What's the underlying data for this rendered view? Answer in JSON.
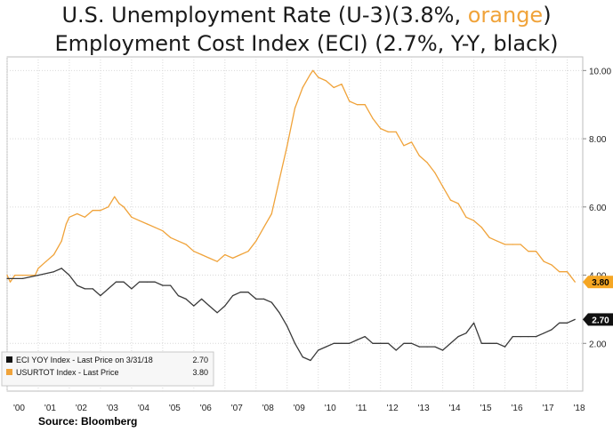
{
  "title": {
    "line1_prefix": "U.S. Unemployment Rate (U-3)(3.8%, ",
    "line1_highlight": "orange",
    "line1_suffix": ")",
    "line2": "Employment Cost Index (ECI) (2.7%, Y-Y, black)"
  },
  "source": "Source: Bloomberg",
  "colors": {
    "unemployment": "#f0a33a",
    "eci": "#3a3a3a",
    "label_bg_unemp": "#f5a623",
    "label_bg_eci": "#111111",
    "grid": "#d9d9d9"
  },
  "legend": [
    {
      "text": "ECI YOY Index - Last Price on 3/31/18",
      "value": "2.70",
      "swatch": "#111111"
    },
    {
      "text": "USURTOT Index - Last Price",
      "value": "3.80",
      "swatch": "#f0a33a"
    }
  ],
  "last_labels": {
    "eci": "2.70",
    "unemployment": "3.80"
  },
  "chart_data": {
    "type": "line",
    "title": "",
    "xlabel": "",
    "ylabel": "",
    "x_ticks": [
      "'00",
      "'01",
      "'02",
      "'03",
      "'04",
      "'05",
      "'06",
      "'07",
      "'08",
      "'09",
      "'10",
      "'11",
      "'12",
      "'13",
      "'14",
      "'15",
      "'16",
      "'17",
      "'18"
    ],
    "y_ticks": [
      "2.00",
      "4.00",
      "6.00",
      "8.00",
      "10.00"
    ],
    "ylim": [
      0.6,
      10.4
    ],
    "xlim": [
      2000.0,
      2018.5
    ],
    "grid": true,
    "legend_position": "bottom-left",
    "series": [
      {
        "key": "unemployment",
        "x": [
          2000.0,
          2000.1,
          2000.25,
          2000.5,
          2000.9,
          2001.0,
          2001.25,
          2001.5,
          2001.75,
          2001.9,
          2002.0,
          2002.25,
          2002.5,
          2002.75,
          2003.0,
          2003.25,
          2003.45,
          2003.6,
          2003.75,
          2004.0,
          2004.25,
          2004.5,
          2004.75,
          2005.0,
          2005.25,
          2005.5,
          2005.75,
          2006.0,
          2006.25,
          2006.5,
          2006.75,
          2007.0,
          2007.25,
          2007.5,
          2007.75,
          2008.0,
          2008.25,
          2008.5,
          2008.75,
          2009.0,
          2009.25,
          2009.5,
          2009.75,
          2009.83,
          2010.0,
          2010.25,
          2010.5,
          2010.75,
          2011.0,
          2011.25,
          2011.5,
          2011.75,
          2012.0,
          2012.25,
          2012.5,
          2012.75,
          2013.0,
          2013.25,
          2013.5,
          2013.75,
          2014.0,
          2014.25,
          2014.5,
          2014.75,
          2015.0,
          2015.25,
          2015.5,
          2015.75,
          2016.0,
          2016.25,
          2016.5,
          2016.75,
          2017.0,
          2017.25,
          2017.5,
          2017.75,
          2018.0,
          2018.25
        ],
        "values": [
          4.0,
          3.8,
          4.0,
          4.0,
          4.0,
          4.2,
          4.4,
          4.6,
          5.0,
          5.5,
          5.7,
          5.8,
          5.7,
          5.9,
          5.9,
          6.0,
          6.3,
          6.1,
          6.0,
          5.7,
          5.6,
          5.5,
          5.4,
          5.3,
          5.1,
          5.0,
          4.9,
          4.7,
          4.6,
          4.5,
          4.4,
          4.6,
          4.5,
          4.6,
          4.7,
          5.0,
          5.4,
          5.8,
          6.8,
          7.8,
          8.9,
          9.5,
          9.9,
          10.0,
          9.8,
          9.7,
          9.5,
          9.6,
          9.1,
          9.0,
          9.0,
          8.6,
          8.3,
          8.2,
          8.2,
          7.8,
          7.9,
          7.5,
          7.3,
          7.0,
          6.6,
          6.2,
          6.1,
          5.7,
          5.6,
          5.4,
          5.1,
          5.0,
          4.9,
          4.9,
          4.9,
          4.7,
          4.7,
          4.4,
          4.3,
          4.1,
          4.1,
          3.8
        ]
      },
      {
        "key": "eci",
        "x": [
          2000.0,
          2000.5,
          2001.0,
          2001.5,
          2001.75,
          2002.0,
          2002.25,
          2002.5,
          2002.75,
          2003.0,
          2003.25,
          2003.5,
          2003.75,
          2004.0,
          2004.25,
          2004.5,
          2004.75,
          2005.0,
          2005.25,
          2005.5,
          2005.75,
          2006.0,
          2006.25,
          2006.5,
          2006.75,
          2007.0,
          2007.25,
          2007.5,
          2007.75,
          2008.0,
          2008.25,
          2008.5,
          2008.75,
          2009.0,
          2009.25,
          2009.5,
          2009.75,
          2010.0,
          2010.25,
          2010.5,
          2010.75,
          2011.0,
          2011.25,
          2011.5,
          2011.75,
          2012.0,
          2012.25,
          2012.5,
          2012.75,
          2013.0,
          2013.25,
          2013.5,
          2013.75,
          2014.0,
          2014.25,
          2014.5,
          2014.75,
          2015.0,
          2015.25,
          2015.5,
          2015.75,
          2016.0,
          2016.25,
          2016.5,
          2016.75,
          2017.0,
          2017.25,
          2017.5,
          2017.75,
          2018.0,
          2018.25
        ],
        "values": [
          3.9,
          3.9,
          4.0,
          4.1,
          4.2,
          4.0,
          3.7,
          3.6,
          3.6,
          3.4,
          3.6,
          3.8,
          3.8,
          3.6,
          3.8,
          3.8,
          3.8,
          3.7,
          3.7,
          3.4,
          3.3,
          3.1,
          3.3,
          3.1,
          2.9,
          3.1,
          3.4,
          3.5,
          3.5,
          3.3,
          3.3,
          3.2,
          2.9,
          2.5,
          2.0,
          1.6,
          1.5,
          1.8,
          1.9,
          2.0,
          2.0,
          2.0,
          2.1,
          2.2,
          2.0,
          2.0,
          2.0,
          1.8,
          2.0,
          2.0,
          1.9,
          1.9,
          1.9,
          1.8,
          2.0,
          2.2,
          2.3,
          2.6,
          2.0,
          2.0,
          2.0,
          1.9,
          2.2,
          2.2,
          2.2,
          2.2,
          2.3,
          2.4,
          2.6,
          2.6,
          2.7
        ]
      }
    ]
  }
}
